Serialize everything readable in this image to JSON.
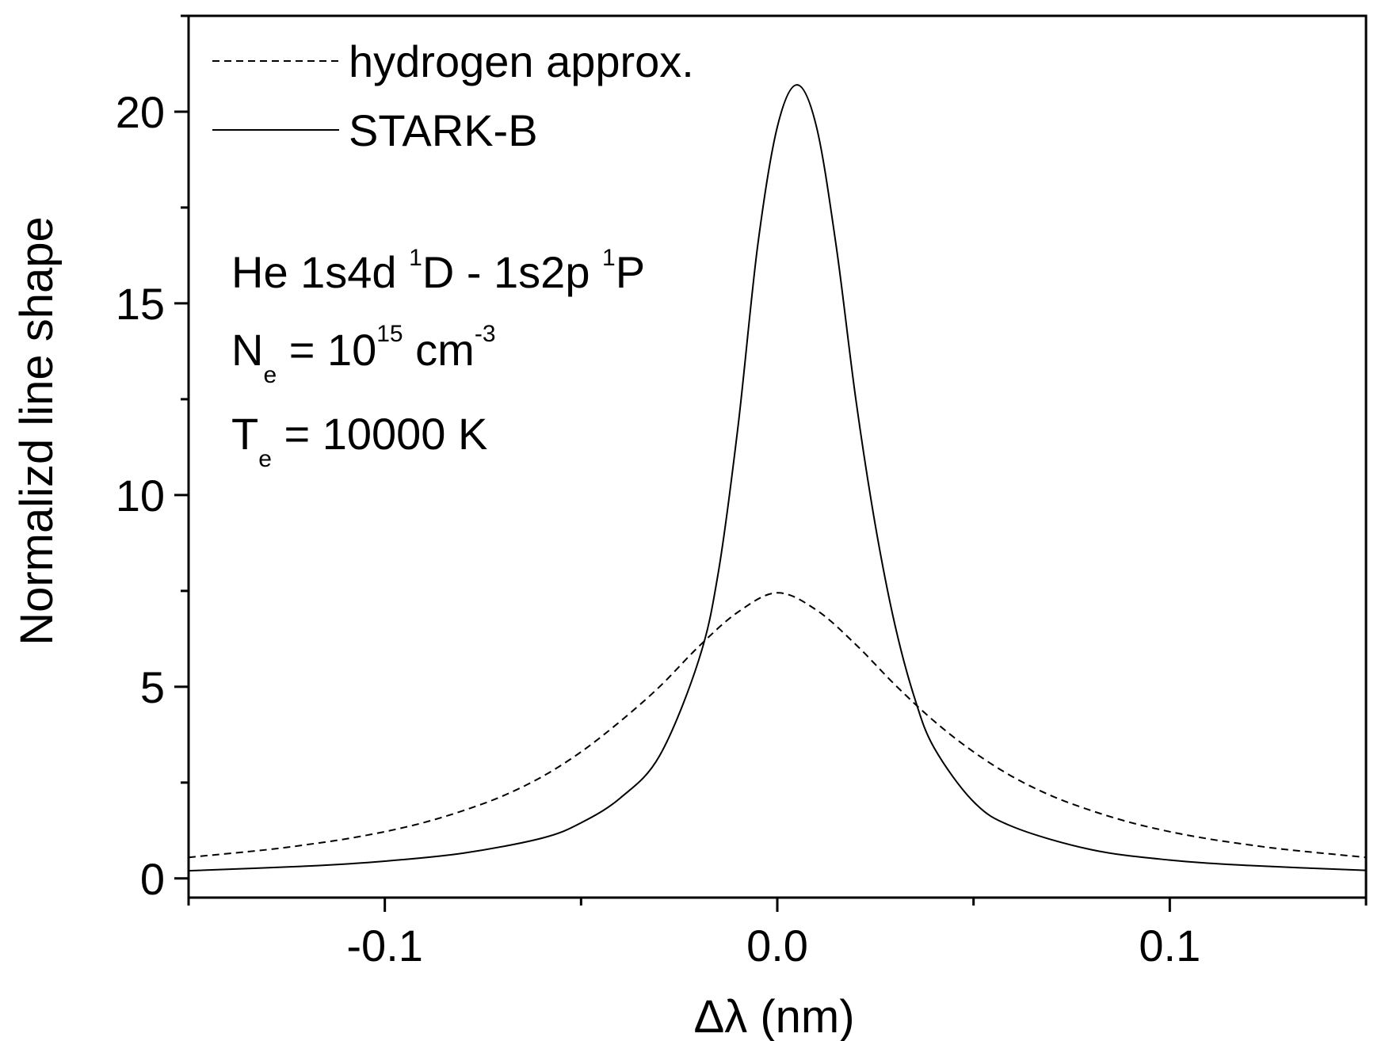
{
  "chart_data": {
    "type": "line",
    "title": "",
    "xlabel": "Δλ (nm)",
    "ylabel": "Normalizd line shape",
    "xlim": [
      -0.15,
      0.15
    ],
    "ylim": [
      -0.5,
      22.5
    ],
    "grid": false,
    "legend_position": "top-left",
    "x_ticks": [
      {
        "value": -0.1,
        "label": "-0.1"
      },
      {
        "value": 0.0,
        "label": "0.0"
      },
      {
        "value": 0.1,
        "label": "0.1"
      }
    ],
    "y_ticks": [
      {
        "value": 0,
        "label": "0"
      },
      {
        "value": 5,
        "label": "5"
      },
      {
        "value": 10,
        "label": "10"
      },
      {
        "value": 15,
        "label": "15"
      },
      {
        "value": 20,
        "label": "20"
      }
    ],
    "series": [
      {
        "name": "hydrogen approx.",
        "style": "dashed",
        "color": "#000000",
        "x": [
          -0.15,
          -0.13,
          -0.12,
          -0.11,
          -0.1,
          -0.09,
          -0.08,
          -0.07,
          -0.06,
          -0.05,
          -0.04,
          -0.03,
          -0.02,
          -0.01,
          0.0,
          0.01,
          0.02,
          0.03,
          0.04,
          0.05,
          0.06,
          0.07,
          0.08,
          0.09,
          0.1,
          0.11,
          0.12,
          0.13,
          0.15
        ],
        "y": [
          0.55,
          0.75,
          0.88,
          1.03,
          1.22,
          1.46,
          1.77,
          2.15,
          2.65,
          3.3,
          4.1,
          5.0,
          6.05,
          6.95,
          7.45,
          7.0,
          6.1,
          5.05,
          4.1,
          3.3,
          2.65,
          2.15,
          1.77,
          1.46,
          1.22,
          1.03,
          0.88,
          0.75,
          0.55
        ]
      },
      {
        "name": "STARK-B",
        "style": "solid",
        "color": "#000000",
        "x": [
          -0.15,
          -0.12,
          -0.1,
          -0.08,
          -0.06,
          -0.05,
          -0.04,
          -0.03,
          -0.02,
          -0.015,
          -0.01,
          -0.005,
          0.0,
          0.005,
          0.01,
          0.015,
          0.02,
          0.025,
          0.03,
          0.035,
          0.04,
          0.05,
          0.06,
          0.08,
          0.1,
          0.12,
          0.15
        ],
        "y": [
          0.2,
          0.32,
          0.45,
          0.66,
          1.05,
          1.45,
          2.1,
          3.2,
          5.7,
          8.0,
          11.8,
          16.5,
          19.6,
          20.7,
          19.6,
          16.5,
          12.5,
          9.2,
          6.6,
          4.7,
          3.4,
          2.0,
          1.35,
          0.75,
          0.48,
          0.34,
          0.21
        ]
      }
    ],
    "annotations": {
      "line1": {
        "main": "He 1s4d ",
        "sup1": "1",
        "mid": "D - 1s2p ",
        "sup2": "1",
        "end": "P"
      },
      "line2": {
        "main": "N",
        "sub": "e",
        "mid": " = 10",
        "sup": "15",
        "end": " cm",
        "sup2": "-3"
      },
      "line3": {
        "main": "T",
        "sub": "e",
        "end": " = 10000 K"
      }
    }
  }
}
